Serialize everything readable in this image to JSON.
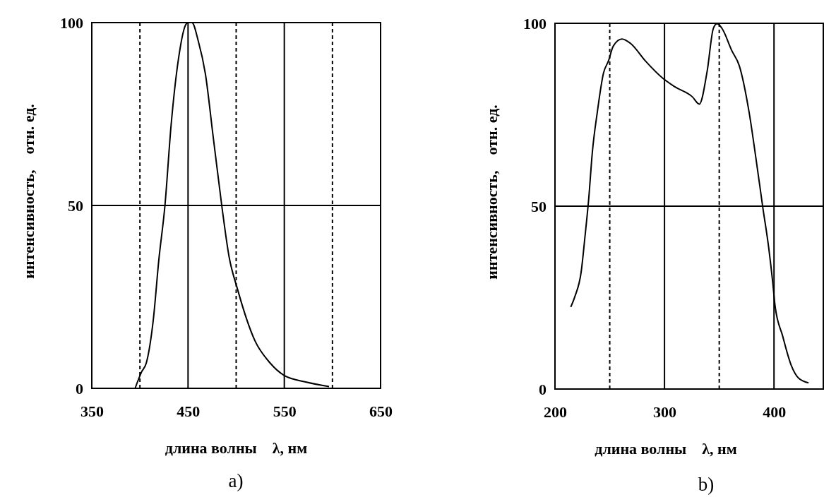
{
  "chart_data": [
    {
      "type": "line",
      "xlabel": "длина волны    λ, нм",
      "ylabel": "интенсивность,    отн. ед.",
      "annotations": [
        "a)"
      ],
      "xlim": [
        350,
        650
      ],
      "ylim": [
        0,
        100
      ],
      "xticks": [
        350,
        {
          "value": 400,
          "label": null
        },
        450,
        {
          "value": 500,
          "label": null
        },
        550,
        {
          "value": 600,
          "label": null
        },
        650
      ],
      "yticks": [
        0,
        50,
        100
      ],
      "grid": true,
      "line_style": "solid",
      "marker": "none",
      "series": [
        {
          "color": "#000000",
          "x": [
            395,
            401.6,
            406.7,
            414,
            419.6,
            426,
            432.4,
            440,
            448,
            450.4,
            454,
            460.6,
            468,
            476,
            485,
            492.6,
            501.5,
            519.5,
            535,
            550,
            573,
            596.5
          ],
          "values": [
            0,
            4.4,
            7,
            19,
            35,
            50,
            72,
            90,
            99.6,
            100,
            100,
            95,
            86,
            69,
            50,
            36,
            27,
            13,
            7,
            3.5,
            1.7,
            0.5
          ]
        }
      ]
    },
    {
      "type": "line",
      "xlabel": "длина волны    λ, нм",
      "ylabel": "интенсивность,    отн. ед.",
      "annotations": [
        "b)"
      ],
      "xlim": [
        200,
        445
      ],
      "ylim": [
        0,
        100
      ],
      "xticks": [
        200,
        {
          "value": 250,
          "label": null
        },
        300,
        {
          "value": 350,
          "label": null
        },
        400
      ],
      "yticks": [
        0,
        50,
        100
      ],
      "grid": true,
      "line_style": "solid",
      "marker": "none",
      "series": [
        {
          "color": "#000000",
          "x": [
            214.4,
            218.3,
            223.9,
            227.4,
            230.8,
            234.1,
            238.6,
            244.3,
            248.8,
            253.3,
            261.2,
            269,
            282.6,
            298.4,
            309.7,
            325.4,
            331.8,
            339,
            344.6,
            348,
            352.5,
            361.5,
            368.3,
            377.3,
            384,
            389.7,
            395.3,
            398.7,
            401,
            407.8,
            415.7,
            422.4,
            431.5
          ],
          "values": [
            22.4,
            25.4,
            32,
            41.7,
            52,
            64.7,
            75.6,
            86.4,
            89.7,
            93.8,
            95.7,
            94.5,
            89.7,
            85,
            82.6,
            79.9,
            77.9,
            87,
            98.6,
            99.9,
            98.6,
            92.5,
            88.4,
            75.6,
            62,
            49.8,
            38.3,
            29.5,
            22.7,
            14.6,
            6.5,
            3,
            1.7
          ]
        }
      ]
    }
  ]
}
